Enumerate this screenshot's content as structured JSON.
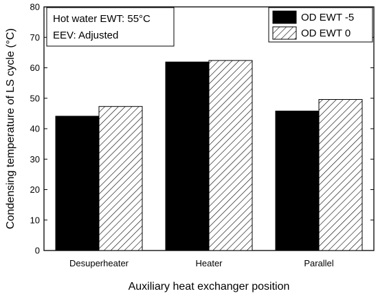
{
  "chart_data": {
    "type": "bar",
    "categories": [
      "Desuperheater",
      "Heater",
      "Parallel"
    ],
    "series": [
      {
        "name": "OD EWT -5",
        "values": [
          44.1,
          61.9,
          45.8
        ],
        "fill": "solid",
        "color": "#000000"
      },
      {
        "name": "OD EWT 0",
        "values": [
          47.3,
          62.4,
          49.6
        ],
        "fill": "hatched",
        "color": "#000000"
      }
    ],
    "xlabel": "Auxiliary heat exchanger position",
    "ylabel": "Condensing temperature of LS cycle (°C)",
    "ylim": [
      0,
      80
    ],
    "yticks": [
      0,
      10,
      20,
      30,
      40,
      50,
      60,
      70,
      80
    ],
    "grid": false,
    "legend_position": "top-right",
    "annotation": {
      "line1": "Hot water EWT: 55°C",
      "line2": "EEV: Adjusted",
      "position": "top-left"
    }
  }
}
